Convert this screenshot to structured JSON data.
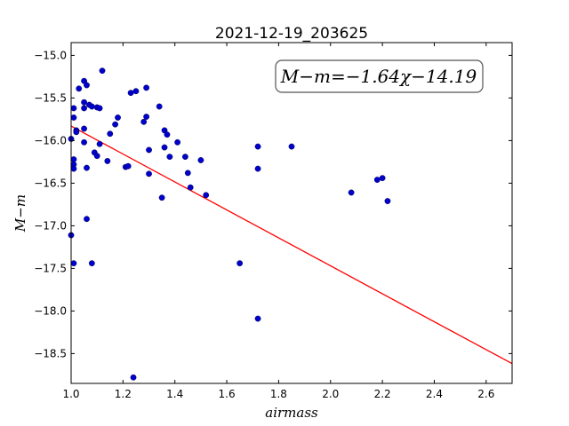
{
  "chart_data": {
    "type": "scatter",
    "title": "2021-12-19_203625",
    "xlabel": "airmass",
    "ylabel": "M−m",
    "xlim": [
      1.0,
      2.7
    ],
    "ylim": [
      -18.85,
      -14.85
    ],
    "xticks": [
      1.0,
      1.2,
      1.4,
      1.6,
      1.8,
      2.0,
      2.2,
      2.4,
      2.6
    ],
    "xtick_labels": [
      "1.0",
      "1.2",
      "1.4",
      "1.6",
      "1.8",
      "2.0",
      "2.2",
      "2.4",
      "2.6"
    ],
    "yticks": [
      -15.0,
      -15.5,
      -16.0,
      -16.5,
      -17.0,
      -17.5,
      -18.0,
      -18.5
    ],
    "ytick_labels": [
      "−15.0",
      "−15.5",
      "−16.0",
      "−16.5",
      "−17.0",
      "−17.5",
      "−18.0",
      "−18.5"
    ],
    "annotation": "M−m=−1.64χ−14.19",
    "annotation_position": "top-right",
    "marker_color": "#0000cc",
    "fit_line": {
      "slope": -1.64,
      "intercept": -14.19,
      "color": "#ff0000"
    },
    "points": [
      {
        "x": 1.0,
        "y": -15.98
      },
      {
        "x": 1.0,
        "y": -17.11
      },
      {
        "x": 1.01,
        "y": -15.62
      },
      {
        "x": 1.01,
        "y": -15.73
      },
      {
        "x": 1.01,
        "y": -16.22
      },
      {
        "x": 1.01,
        "y": -16.28
      },
      {
        "x": 1.01,
        "y": -16.33
      },
      {
        "x": 1.01,
        "y": -17.44
      },
      {
        "x": 1.02,
        "y": -15.88
      },
      {
        "x": 1.02,
        "y": -15.9
      },
      {
        "x": 1.03,
        "y": -15.39
      },
      {
        "x": 1.05,
        "y": -15.3
      },
      {
        "x": 1.06,
        "y": -15.35
      },
      {
        "x": 1.05,
        "y": -15.55
      },
      {
        "x": 1.05,
        "y": -15.62
      },
      {
        "x": 1.05,
        "y": -15.86
      },
      {
        "x": 1.05,
        "y": -16.02
      },
      {
        "x": 1.06,
        "y": -16.32
      },
      {
        "x": 1.06,
        "y": -16.92
      },
      {
        "x": 1.07,
        "y": -15.58
      },
      {
        "x": 1.08,
        "y": -15.6
      },
      {
        "x": 1.08,
        "y": -17.44
      },
      {
        "x": 1.09,
        "y": -16.14
      },
      {
        "x": 1.1,
        "y": -15.61
      },
      {
        "x": 1.1,
        "y": -16.18
      },
      {
        "x": 1.11,
        "y": -15.62
      },
      {
        "x": 1.11,
        "y": -16.04
      },
      {
        "x": 1.12,
        "y": -15.18
      },
      {
        "x": 1.14,
        "y": -16.24
      },
      {
        "x": 1.15,
        "y": -15.92
      },
      {
        "x": 1.17,
        "y": -15.81
      },
      {
        "x": 1.18,
        "y": -15.73
      },
      {
        "x": 1.21,
        "y": -16.31
      },
      {
        "x": 1.22,
        "y": -16.3
      },
      {
        "x": 1.23,
        "y": -15.44
      },
      {
        "x": 1.25,
        "y": -15.42
      },
      {
        "x": 1.24,
        "y": -18.78
      },
      {
        "x": 1.28,
        "y": -15.78
      },
      {
        "x": 1.29,
        "y": -15.38
      },
      {
        "x": 1.29,
        "y": -15.72
      },
      {
        "x": 1.3,
        "y": -16.11
      },
      {
        "x": 1.3,
        "y": -16.39
      },
      {
        "x": 1.34,
        "y": -15.6
      },
      {
        "x": 1.35,
        "y": -16.67
      },
      {
        "x": 1.36,
        "y": -15.88
      },
      {
        "x": 1.36,
        "y": -16.08
      },
      {
        "x": 1.37,
        "y": -15.93
      },
      {
        "x": 1.38,
        "y": -16.19
      },
      {
        "x": 1.41,
        "y": -16.02
      },
      {
        "x": 1.44,
        "y": -16.19
      },
      {
        "x": 1.45,
        "y": -16.38
      },
      {
        "x": 1.46,
        "y": -16.55
      },
      {
        "x": 1.5,
        "y": -16.23
      },
      {
        "x": 1.52,
        "y": -16.64
      },
      {
        "x": 1.65,
        "y": -17.44
      },
      {
        "x": 1.72,
        "y": -16.07
      },
      {
        "x": 1.72,
        "y": -16.33
      },
      {
        "x": 1.72,
        "y": -18.09
      },
      {
        "x": 1.85,
        "y": -16.07
      },
      {
        "x": 2.08,
        "y": -16.61
      },
      {
        "x": 2.18,
        "y": -16.46
      },
      {
        "x": 2.2,
        "y": -16.44
      },
      {
        "x": 2.22,
        "y": -16.71
      }
    ]
  }
}
